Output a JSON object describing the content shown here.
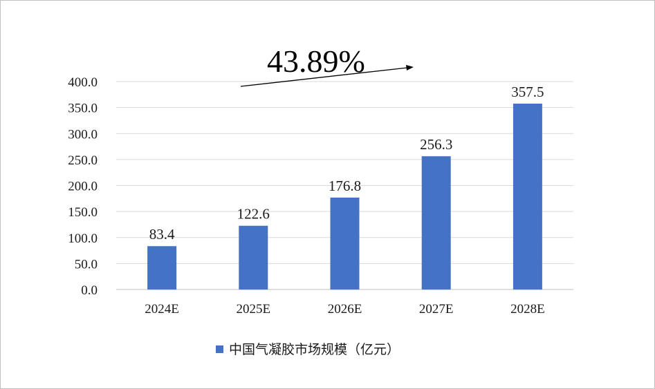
{
  "chart_data": {
    "type": "bar",
    "categories": [
      "2024E",
      "2025E",
      "2026E",
      "2027E",
      "2028E"
    ],
    "series": [
      {
        "name": "中国气凝胶市场规模（亿元）",
        "values": [
          83.4,
          122.6,
          176.8,
          256.3,
          357.5
        ],
        "color": "#4472C4"
      }
    ],
    "value_labels": [
      "83.4",
      "122.6",
      "176.8",
      "256.3",
      "357.5"
    ],
    "ylim": [
      0,
      400
    ],
    "yticks": [
      "0.0",
      "50.0",
      "100.0",
      "150.0",
      "200.0",
      "250.0",
      "300.0",
      "350.0",
      "400.0"
    ],
    "grid": true,
    "legend": {
      "position": "bottom",
      "label": "中国气凝胶市场规模（亿元）"
    },
    "annotation": {
      "text": "43.89%"
    },
    "xlabel": "",
    "ylabel": ""
  }
}
